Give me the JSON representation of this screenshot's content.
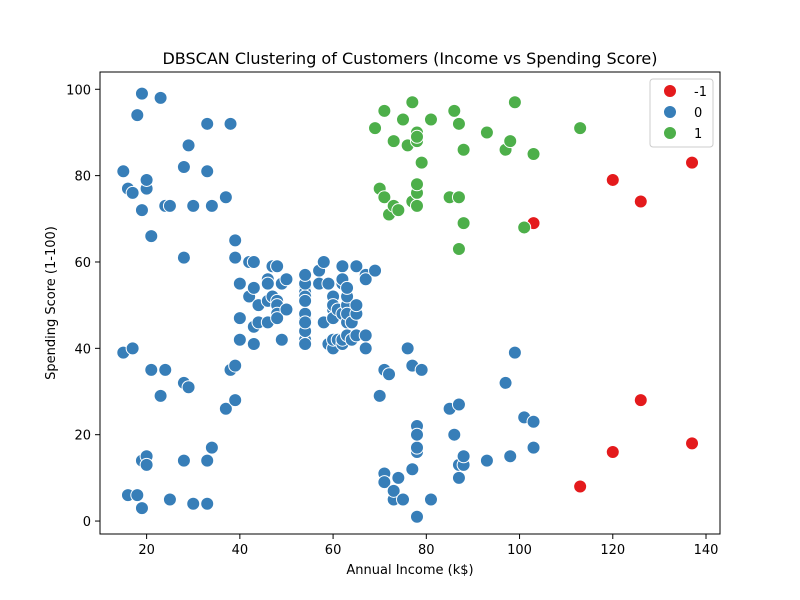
{
  "chart_data": {
    "type": "scatter",
    "title": "DBSCAN Clustering of Customers (Income vs Spending Score)",
    "xlabel": "Annual Income (k$)",
    "ylabel": "Spending Score (1-100)",
    "xlim": [
      10,
      143
    ],
    "ylim": [
      -3,
      104
    ],
    "xticks": [
      20,
      40,
      60,
      80,
      100,
      120,
      140
    ],
    "yticks": [
      0,
      20,
      40,
      60,
      80,
      100
    ],
    "grid": false,
    "legend": "top-right",
    "series": [
      {
        "name": "-1",
        "color": "#e41a1c",
        "points": [
          [
            103,
            69
          ],
          [
            120,
            79
          ],
          [
            126,
            74
          ],
          [
            137,
            83
          ],
          [
            113,
            8
          ],
          [
            120,
            16
          ],
          [
            126,
            28
          ],
          [
            137,
            18
          ]
        ]
      },
      {
        "name": "0",
        "color": "#377eb8",
        "points": [
          [
            15,
            39
          ],
          [
            15,
            81
          ],
          [
            16,
            6
          ],
          [
            16,
            77
          ],
          [
            17,
            40
          ],
          [
            17,
            76
          ],
          [
            18,
            6
          ],
          [
            18,
            94
          ],
          [
            19,
            3
          ],
          [
            19,
            72
          ],
          [
            19,
            14
          ],
          [
            19,
            99
          ],
          [
            20,
            15
          ],
          [
            20,
            77
          ],
          [
            20,
            13
          ],
          [
            20,
            79
          ],
          [
            21,
            35
          ],
          [
            21,
            66
          ],
          [
            23,
            29
          ],
          [
            23,
            98
          ],
          [
            24,
            35
          ],
          [
            24,
            73
          ],
          [
            25,
            5
          ],
          [
            25,
            73
          ],
          [
            28,
            14
          ],
          [
            28,
            82
          ],
          [
            28,
            32
          ],
          [
            28,
            61
          ],
          [
            29,
            31
          ],
          [
            29,
            87
          ],
          [
            30,
            4
          ],
          [
            30,
            73
          ],
          [
            33,
            4
          ],
          [
            33,
            92
          ],
          [
            33,
            14
          ],
          [
            33,
            81
          ],
          [
            34,
            17
          ],
          [
            34,
            73
          ],
          [
            37,
            26
          ],
          [
            37,
            75
          ],
          [
            38,
            35
          ],
          [
            38,
            92
          ],
          [
            39,
            36
          ],
          [
            39,
            61
          ],
          [
            39,
            28
          ],
          [
            39,
            65
          ],
          [
            40,
            55
          ],
          [
            40,
            47
          ],
          [
            40,
            42
          ],
          [
            42,
            52
          ],
          [
            42,
            60
          ],
          [
            43,
            54
          ],
          [
            43,
            60
          ],
          [
            43,
            45
          ],
          [
            43,
            41
          ],
          [
            44,
            50
          ],
          [
            44,
            46
          ],
          [
            46,
            51
          ],
          [
            46,
            46
          ],
          [
            46,
            56
          ],
          [
            46,
            55
          ],
          [
            47,
            52
          ],
          [
            47,
            59
          ],
          [
            48,
            51
          ],
          [
            48,
            59
          ],
          [
            48,
            50
          ],
          [
            48,
            48
          ],
          [
            48,
            59
          ],
          [
            48,
            47
          ],
          [
            49,
            55
          ],
          [
            49,
            42
          ],
          [
            50,
            49
          ],
          [
            50,
            56
          ],
          [
            54,
            47
          ],
          [
            54,
            54
          ],
          [
            54,
            53
          ],
          [
            54,
            48
          ],
          [
            54,
            52
          ],
          [
            54,
            42
          ],
          [
            54,
            51
          ],
          [
            54,
            55
          ],
          [
            54,
            41
          ],
          [
            54,
            44
          ],
          [
            54,
            57
          ],
          [
            54,
            46
          ],
          [
            57,
            58
          ],
          [
            57,
            55
          ],
          [
            58,
            60
          ],
          [
            58,
            46
          ],
          [
            59,
            55
          ],
          [
            59,
            41
          ],
          [
            60,
            49
          ],
          [
            60,
            40
          ],
          [
            60,
            42
          ],
          [
            60,
            52
          ],
          [
            60,
            47
          ],
          [
            60,
            50
          ],
          [
            61,
            42
          ],
          [
            61,
            49
          ],
          [
            62,
            41
          ],
          [
            62,
            48
          ],
          [
            62,
            59
          ],
          [
            62,
            55
          ],
          [
            62,
            56
          ],
          [
            62,
            42
          ],
          [
            63,
            50
          ],
          [
            63,
            46
          ],
          [
            63,
            43
          ],
          [
            63,
            48
          ],
          [
            63,
            52
          ],
          [
            63,
            54
          ],
          [
            64,
            42
          ],
          [
            64,
            46
          ],
          [
            65,
            48
          ],
          [
            65,
            50
          ],
          [
            65,
            43
          ],
          [
            65,
            59
          ],
          [
            67,
            43
          ],
          [
            67,
            57
          ],
          [
            67,
            56
          ],
          [
            67,
            40
          ],
          [
            69,
            58
          ],
          [
            70,
            29
          ],
          [
            71,
            35
          ],
          [
            72,
            34
          ],
          [
            76,
            40
          ],
          [
            77,
            36
          ],
          [
            79,
            35
          ],
          [
            97,
            32
          ],
          [
            99,
            39
          ],
          [
            101,
            24
          ],
          [
            103,
            17
          ],
          [
            103,
            23
          ],
          [
            71,
            11
          ],
          [
            71,
            9
          ],
          [
            73,
            5
          ],
          [
            73,
            7
          ],
          [
            74,
            10
          ],
          [
            75,
            5
          ],
          [
            77,
            12
          ],
          [
            78,
            1
          ],
          [
            78,
            16
          ],
          [
            78,
            17
          ],
          [
            78,
            22
          ],
          [
            78,
            20
          ],
          [
            81,
            5
          ],
          [
            85,
            26
          ],
          [
            86,
            20
          ],
          [
            87,
            27
          ],
          [
            87,
            13
          ],
          [
            87,
            10
          ],
          [
            88,
            13
          ],
          [
            88,
            15
          ],
          [
            93,
            14
          ],
          [
            98,
            15
          ]
        ]
      },
      {
        "name": "1",
        "color": "#4daf4a",
        "points": [
          [
            69,
            91
          ],
          [
            70,
            77
          ],
          [
            71,
            95
          ],
          [
            71,
            75
          ],
          [
            72,
            71
          ],
          [
            73,
            88
          ],
          [
            73,
            73
          ],
          [
            74,
            72
          ],
          [
            75,
            93
          ],
          [
            76,
            87
          ],
          [
            77,
            97
          ],
          [
            77,
            74
          ],
          [
            78,
            90
          ],
          [
            78,
            88
          ],
          [
            78,
            76
          ],
          [
            78,
            89
          ],
          [
            78,
            78
          ],
          [
            78,
            73
          ],
          [
            79,
            83
          ],
          [
            81,
            93
          ],
          [
            85,
            75
          ],
          [
            86,
            95
          ],
          [
            87,
            63
          ],
          [
            87,
            75
          ],
          [
            87,
            92
          ],
          [
            88,
            86
          ],
          [
            88,
            69
          ],
          [
            93,
            90
          ],
          [
            97,
            86
          ],
          [
            98,
            88
          ],
          [
            99,
            97
          ],
          [
            101,
            68
          ],
          [
            103,
            85
          ],
          [
            113,
            91
          ]
        ]
      }
    ]
  }
}
